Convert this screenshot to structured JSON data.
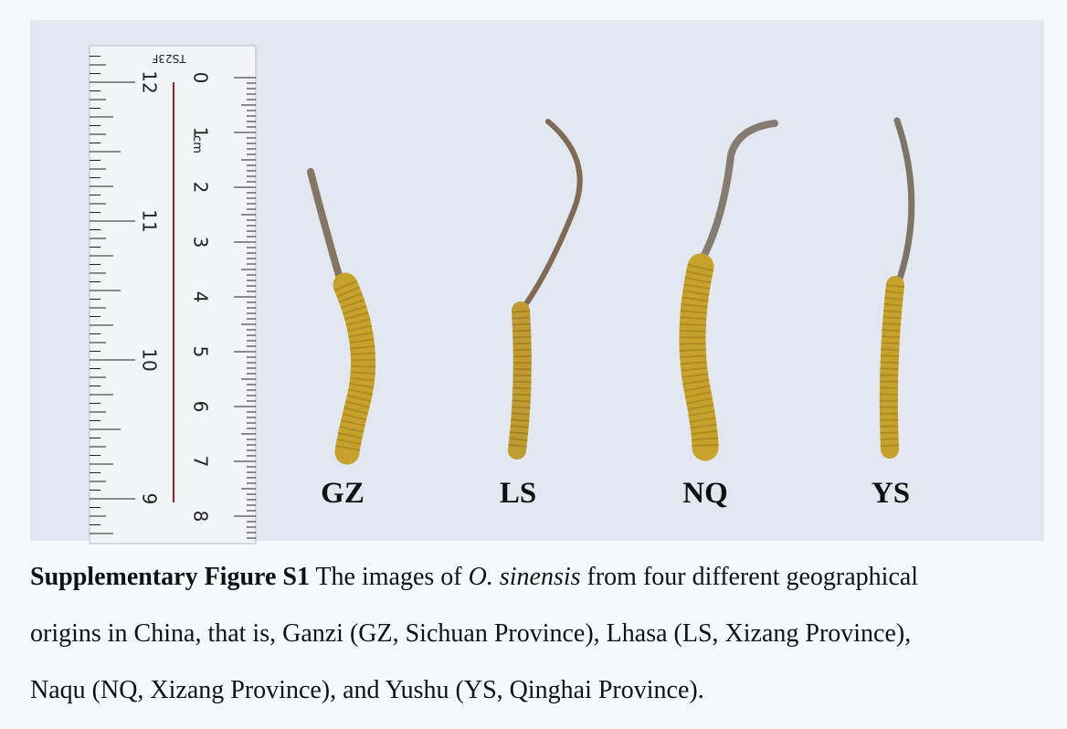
{
  "figure": {
    "ruler": {
      "brand": "TS23F",
      "unit": "cm",
      "cm_labels": [
        "0",
        "1",
        "2",
        "3",
        "4",
        "5",
        "6",
        "7",
        "8"
      ],
      "inch_labels": [
        "12",
        "11",
        "10",
        "9"
      ]
    },
    "specimens": [
      {
        "label": "GZ"
      },
      {
        "label": "LS"
      },
      {
        "label": "NQ"
      },
      {
        "label": "YS"
      }
    ]
  },
  "caption": {
    "lines": [
      [
        {
          "style": "bold",
          "text": "Supplementary Figure S1"
        },
        {
          "style": "normal",
          "text": " The images of "
        },
        {
          "style": "italic",
          "text": "O. sinensis"
        },
        {
          "style": "normal",
          "text": " from four different geographical"
        }
      ],
      [
        {
          "style": "normal",
          "text": "origins in China, that is, Ganzi (GZ, Sichuan Province), Lhasa (LS, Xizang Province),"
        }
      ],
      [
        {
          "style": "normal",
          "text": "Naqu (NQ, Xizang Province), and Yushu (YS, Qinghai Province)."
        }
      ]
    ]
  }
}
